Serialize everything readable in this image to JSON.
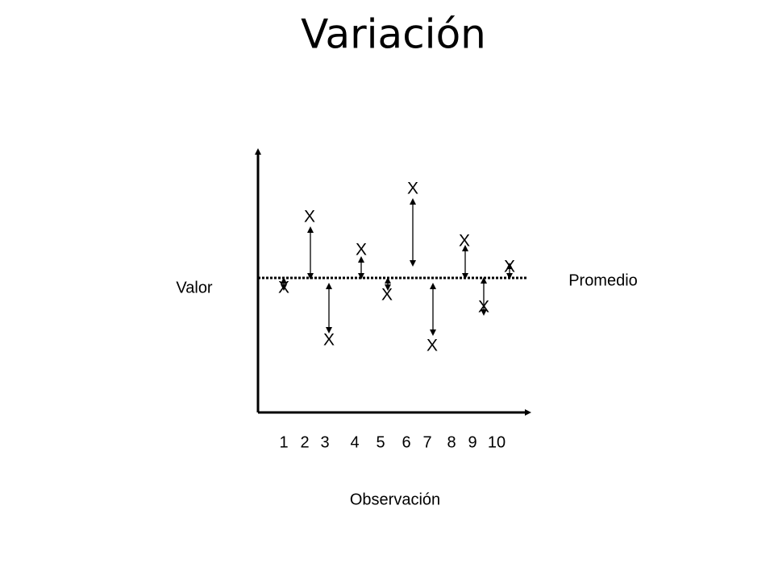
{
  "title": "Variación",
  "y_label": "Valor",
  "x_label": "Observación",
  "mean_label": "Promedio",
  "observations": [
    {
      "label": "1",
      "marker": "X"
    },
    {
      "label": "2",
      "marker": "X"
    },
    {
      "label": "3",
      "marker": "X"
    },
    {
      "label": "4",
      "marker": "X"
    },
    {
      "label": "5",
      "marker": "X"
    },
    {
      "label": "6",
      "marker": "X"
    },
    {
      "label": "7",
      "marker": "X"
    },
    {
      "label": "8",
      "marker": "X"
    },
    {
      "label": "9",
      "marker": "X"
    },
    {
      "label": "10",
      "marker": "X"
    }
  ]
}
